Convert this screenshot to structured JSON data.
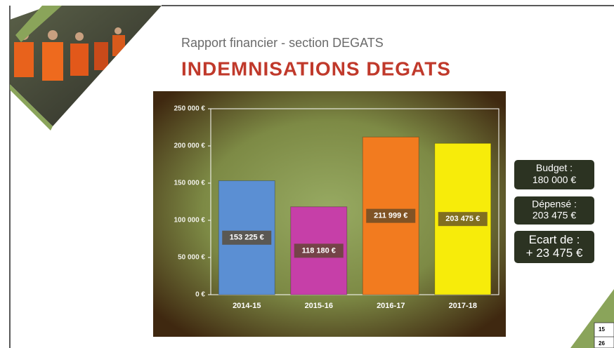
{
  "chart_data": {
    "type": "bar",
    "subtitle": "Rapport financier - section DEGATS",
    "title": "INDEMNISATIONS DEGATS",
    "categories": [
      "2014-15",
      "2015-16",
      "2016-17",
      "2017-18"
    ],
    "values": [
      153225,
      118180,
      211999,
      203475
    ],
    "value_labels": [
      "153 225 €",
      "118 180 €",
      "211 999 €",
      "203 475 €"
    ],
    "colors": [
      "#5b8fd3",
      "#c63fa8",
      "#f27b1f",
      "#f7ec0a"
    ],
    "ylim": [
      0,
      250000
    ],
    "yticks": [
      {
        "value": 0,
        "label": "0 €"
      },
      {
        "value": 50000,
        "label": "50 000 €"
      },
      {
        "value": 100000,
        "label": "100 000 €"
      },
      {
        "value": 150000,
        "label": "150 000 €"
      },
      {
        "value": 200000,
        "label": "200 000 €"
      },
      {
        "value": 250000,
        "label": "250 000 €"
      }
    ],
    "annotations": [
      [
        "Budget :",
        "180 000 €"
      ],
      [
        "Dépensé :",
        "203 475 €"
      ],
      [
        "Ecart de :",
        "+ 23 475 €"
      ]
    ]
  },
  "corner_table": [
    "15",
    "26"
  ]
}
